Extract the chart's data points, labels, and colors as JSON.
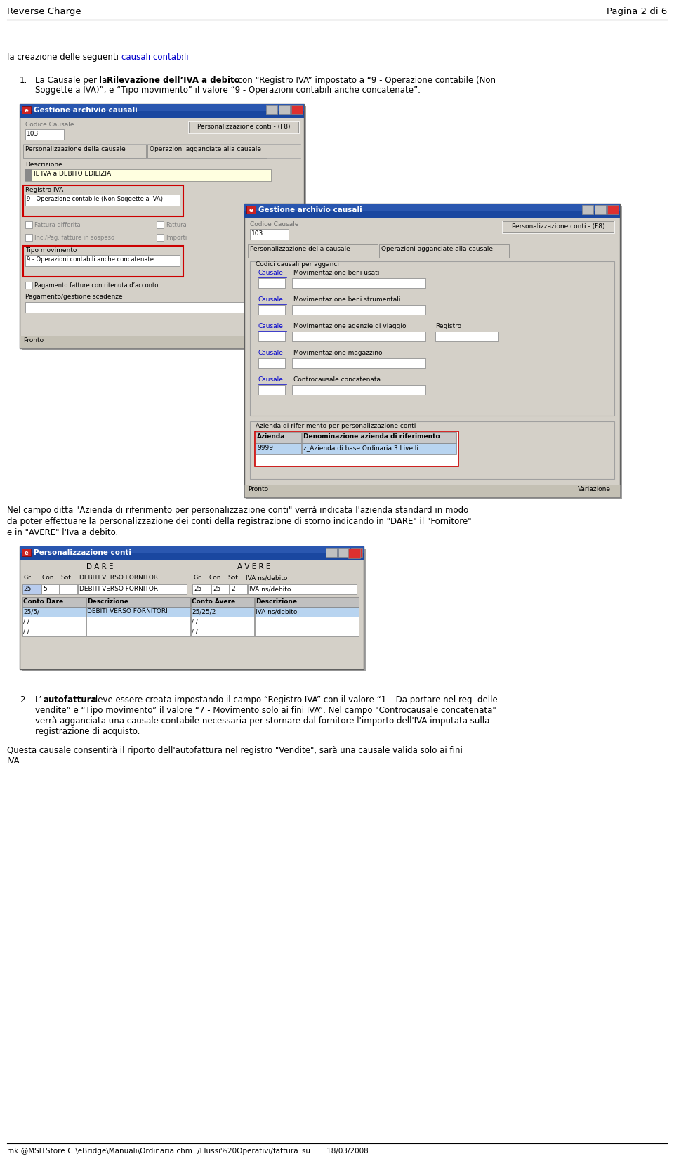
{
  "header_left": "Reverse Charge",
  "header_right": "Pagina 2 di 6",
  "footer": "mk:@MSITStore:C:\\eBridge\\Manuali\\Ordinaria.chm::/Flussi%20Operativi/fattura_su...    18/03/2008",
  "intro_link": "causali contabili",
  "win1_title": "Gestione archivio causali",
  "win1_btn": "Personalizzazione conti - (F8)",
  "win1_codice_causale": "Codice Causale",
  "win1_code": "103",
  "win1_tab1": "Personalizzazione della causale",
  "win1_tab2": "Operazioni agganciate alla causale",
  "win1_desc_label": "Descrizione",
  "win1_desc_value": "IL IVA a DEBITO EDILIZIA",
  "win1_reg_label": "Registro IVA",
  "win1_reg_value": "9 - Operazione contabile (Non Soggette a IVA)",
  "win1_fatt_diff": "Fattura differita",
  "win1_fattura": "Fattura",
  "win1_inc_pag": "Inc./Pag. fatture in sospeso",
  "win1_importi": "Importi",
  "win1_tipo_label": "Tipo movimento",
  "win1_tipo_value": "9 - Operazioni contabili anche concatenate",
  "win1_pag_rit": "Pagamento fatture con ritenuta d’acconto",
  "win1_pag_gest": "Pagamento/gestione scadenze",
  "win1_pronto": "Pronto",
  "win2_title": "Gestione archivio causali",
  "win2_btn": "Personalizzazione conti - (F8)",
  "win2_codice_causale": "Codice Causale",
  "win2_code": "103",
  "win2_tab1": "Personalizzazione della causale",
  "win2_tab2": "Operazioni agganciate alla causale",
  "win2_codici_label": "Codici causali per agganci",
  "win2_causale1": "Causale",
  "win2_mov1": "Movimentazione beni usati",
  "win2_causale2": "Causale",
  "win2_mov2": "Movimentazione beni strumentali",
  "win2_causale3": "Causale",
  "win2_mov3": "Movimentazione agenzie di viaggio",
  "win2_registro": "Registro",
  "win2_causale4": "Causale",
  "win2_mov4": "Movimentazione magazzino",
  "win2_causale5": "Causale",
  "win2_controcausale": "Controcausale concatenata",
  "win2_azienda_label": "Azienda di riferimento per personalizzazione conti",
  "win2_col1": "Azienda",
  "win2_col2": "Denominazione azienda di riferimento",
  "win2_azienda_val": "9999",
  "win2_denom_val": "z_Azienda di base Ordinaria 3 Livelli",
  "win2_pronto": "Pronto",
  "win2_variazione": "Variazione",
  "mid_text1": "Nel campo ditta \"Azienda di riferimento per personalizzazione conti\" verrà indicata l'azienda standard in modo",
  "mid_text2": "da poter effettuare la personalizzazione dei conti della registrazione di storno indicando in \"DARE\" il \"Fornitore\"",
  "mid_text3": "e in \"AVERE\" l'Iva a debito.",
  "win3_title": "Personalizzazione conti",
  "win3_dare": "D A R E",
  "win3_avere": "A V E R E",
  "win3_gr1_val": "25",
  "win3_con1_val": "5",
  "win3_sot1_val": "",
  "win3_desc1_val": "DEBITI VERSO FORNITORI",
  "win3_gr2_val": "25",
  "win3_con2_val": "25",
  "win3_sot2_val": "2",
  "win3_desc2_val": "IVA ns/debito",
  "win3_conto_dare_label": "Conto Dare",
  "win3_desc_label": "Descrizione",
  "win3_conto_avere_label": "Conto Avere",
  "win3_desc2_label": "Descrizione",
  "win3_row1_cd": "25/5/",
  "win3_row1_desc1": "DEBITI VERSO FORNITORI",
  "win3_row1_ca": "25/25/2",
  "win3_row1_desc2": "IVA ns/debito",
  "win3_row2_cd": "/ /",
  "win3_row2_ca": "/ /",
  "win3_row3_cd": "/ /",
  "win3_row3_ca": "/ /",
  "bg_color": "#ffffff",
  "window_bg": "#d4d0c8",
  "titlebar_color": "#000080",
  "field_yellow": "#ffffe0",
  "highlight_red": "#cc0000",
  "link_color": "#0000cc",
  "border_color": "#808080"
}
